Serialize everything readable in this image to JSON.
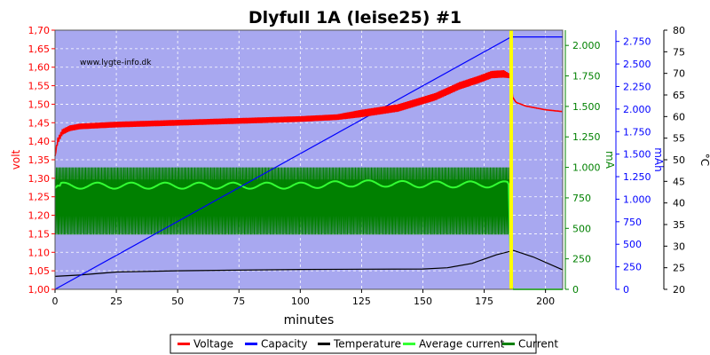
{
  "chart_data": {
    "type": "line",
    "title": "Dlyfull 1A (leise25) #1",
    "xlabel": "minutes",
    "watermark": "www.lygte-info.dk",
    "colors": {
      "plot_bg": "#a8a8f0",
      "voltage": "#ff0000",
      "capacity": "#0000ff",
      "temperature": "#000000",
      "average_current": "#33ff33",
      "current": "#008000",
      "marker": "#ffff00"
    },
    "grid": true,
    "legend_position": "bottom",
    "xlim": [
      0,
      207
    ],
    "x_ticks": [
      "0",
      "25",
      "50",
      "75",
      "100",
      "125",
      "150",
      "175",
      "200"
    ],
    "axes": {
      "volt": {
        "label": "volt",
        "color": "#ff0000",
        "lim": [
          1.0,
          1.7
        ],
        "ticks": [
          "1,00",
          "1,05",
          "1,10",
          "1,15",
          "1,20",
          "1,25",
          "1,30",
          "1,35",
          "1,40",
          "1,45",
          "1,50",
          "1,55",
          "1,60",
          "1,65",
          "1,70"
        ]
      },
      "ma": {
        "label": "mA",
        "color": "#008000",
        "lim": [
          0,
          2125
        ],
        "ticks": [
          "0",
          "250",
          "500",
          "750",
          "1.000",
          "1.250",
          "1.500",
          "1.750",
          "2.000"
        ]
      },
      "mah": {
        "label": "mAh",
        "color": "#0000ff",
        "lim": [
          0,
          2875
        ],
        "ticks": [
          "0",
          "250",
          "500",
          "750",
          "1.000",
          "1.250",
          "1.500",
          "1.750",
          "2.000",
          "2.250",
          "2.500",
          "2.750"
        ]
      },
      "temp": {
        "label": "°C",
        "color": "#000000",
        "lim": [
          20,
          80
        ],
        "ticks": [
          "20",
          "25",
          "30",
          "35",
          "40",
          "45",
          "50",
          "55",
          "60",
          "65",
          "70",
          "75",
          "80"
        ]
      }
    },
    "marker_x": 186,
    "series": [
      {
        "name": "Voltage",
        "axis": "volt",
        "x": [
          0,
          1,
          3,
          6,
          10,
          25,
          50,
          75,
          100,
          115,
          125,
          140,
          155,
          165,
          172,
          178,
          183,
          186,
          186.5,
          188,
          192,
          200,
          207
        ],
        "values": [
          1.36,
          1.4,
          1.425,
          1.435,
          1.44,
          1.445,
          1.45,
          1.455,
          1.46,
          1.465,
          1.475,
          1.49,
          1.52,
          1.55,
          1.565,
          1.58,
          1.582,
          1.575,
          1.52,
          1.505,
          1.495,
          1.485,
          1.48
        ],
        "noise": [
          0,
          0.015,
          0.015,
          0.015,
          0.015,
          0.015,
          0.015,
          0.015,
          0.015,
          0.015,
          0.02,
          0.02,
          0.02,
          0.02,
          0.02,
          0.02,
          0.02,
          0.01,
          0,
          0,
          0,
          0,
          0
        ]
      },
      {
        "name": "Capacity",
        "axis": "mah",
        "x": [
          0,
          186,
          207
        ],
        "values": [
          0,
          2800,
          2800
        ]
      },
      {
        "name": "Temperature",
        "axis": "temp",
        "x": [
          0,
          10,
          25,
          50,
          100,
          150,
          160,
          170,
          180,
          187,
          195,
          207
        ],
        "values": [
          23.0,
          23.3,
          24.0,
          24.3,
          24.6,
          24.7,
          25.0,
          26.0,
          28.0,
          29.0,
          27.5,
          24.5
        ]
      },
      {
        "name": "Average current",
        "axis": "ma",
        "x": [
          0,
          1,
          10,
          50,
          100,
          125,
          150,
          170,
          185,
          186,
          187,
          207
        ],
        "values": [
          830,
          850,
          850,
          850,
          850,
          870,
          860,
          860,
          860,
          20,
          0,
          0
        ]
      },
      {
        "name": "Current",
        "axis": "ma",
        "x": [
          0,
          186,
          186.5,
          207
        ],
        "band_low": [
          450,
          450,
          0,
          0
        ],
        "band_high": [
          1000,
          1000,
          0,
          0
        ]
      }
    ],
    "legend": [
      "Voltage",
      "Capacity",
      "Temperature",
      "Average current",
      "Current"
    ]
  }
}
